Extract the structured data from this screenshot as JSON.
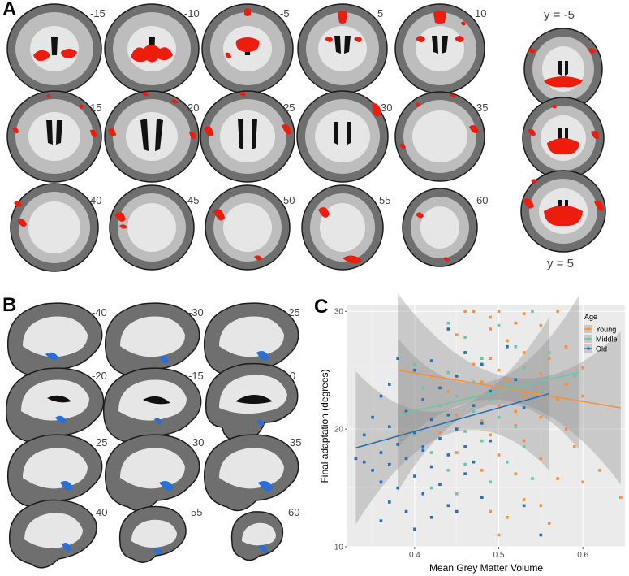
{
  "figure": {
    "panel_a": {
      "letter": "A",
      "axial_slices": [
        "-15",
        "-10",
        "-5",
        "5",
        "10",
        "15",
        "20",
        "25",
        "30",
        "35",
        "40",
        "45",
        "50",
        "55",
        "60"
      ],
      "coronal_top_label": "y = -5",
      "coronal_bottom_label": "y = 5"
    },
    "panel_b": {
      "letter": "B",
      "sagittal_slices": [
        "-40",
        "-30",
        "-25",
        "-20",
        "-15",
        "0",
        "25",
        "30",
        "35",
        "40",
        "55",
        "60"
      ]
    },
    "panel_c": {
      "letter": "C"
    }
  },
  "colors": {
    "activation_red": "#ee1c0d",
    "cluster_blue": "#2a6fd6",
    "young": "#f5913b",
    "middle": "#6cc5a6",
    "old": "#2b6fb0",
    "panel_bg": "#ebebeb"
  },
  "chart_data": {
    "type": "scatter",
    "xlabel": "Mean Grey Matter Volume",
    "ylabel": "Final adaptation (degrees)",
    "xlim": [
      0.32,
      0.65
    ],
    "ylim": [
      10,
      30.5
    ],
    "x_ticks": [
      "0.4",
      "0.5",
      "0.6"
    ],
    "x_tick_values": [
      0.4,
      0.5,
      0.6
    ],
    "y_ticks": [
      "10",
      "20",
      "30"
    ],
    "y_tick_values": [
      10,
      20,
      30
    ],
    "grid": true,
    "legend_title": "Age",
    "legend_position": "top-right",
    "series": [
      {
        "name": "Young",
        "color": "#f5913b",
        "fit": {
          "x": [
            0.38,
            0.645
          ],
          "y": [
            25.0,
            21.8
          ]
        },
        "points": [
          [
            0.46,
            30
          ],
          [
            0.47,
            30
          ],
          [
            0.49,
            29.5
          ],
          [
            0.5,
            30
          ],
          [
            0.53,
            29.8
          ],
          [
            0.57,
            30
          ],
          [
            0.49,
            28.5
          ],
          [
            0.52,
            29
          ],
          [
            0.55,
            28.8
          ],
          [
            0.45,
            28
          ],
          [
            0.58,
            27
          ],
          [
            0.51,
            27.5
          ],
          [
            0.46,
            26.5
          ],
          [
            0.49,
            26
          ],
          [
            0.53,
            26.5
          ],
          [
            0.56,
            26
          ],
          [
            0.6,
            25.2
          ],
          [
            0.47,
            25.5
          ],
          [
            0.5,
            25
          ],
          [
            0.55,
            24.7
          ],
          [
            0.42,
            24.5
          ],
          [
            0.48,
            24
          ],
          [
            0.51,
            24.2
          ],
          [
            0.58,
            23.8
          ],
          [
            0.44,
            23.2
          ],
          [
            0.53,
            22.8
          ],
          [
            0.57,
            22.5
          ],
          [
            0.6,
            22.8
          ],
          [
            0.41,
            22.5
          ],
          [
            0.5,
            22
          ],
          [
            0.52,
            21.5
          ],
          [
            0.55,
            21
          ],
          [
            0.45,
            21.2
          ],
          [
            0.48,
            20.7
          ],
          [
            0.52,
            20.3
          ],
          [
            0.58,
            20
          ],
          [
            0.43,
            19.7
          ],
          [
            0.49,
            19.5
          ],
          [
            0.53,
            19
          ],
          [
            0.59,
            18.5
          ],
          [
            0.45,
            18
          ],
          [
            0.5,
            17.8
          ],
          [
            0.55,
            17.5
          ],
          [
            0.52,
            16.2
          ],
          [
            0.57,
            15.8
          ],
          [
            0.48,
            16.5
          ],
          [
            0.62,
            16.5
          ],
          [
            0.6,
            15.5
          ],
          [
            0.53,
            14
          ],
          [
            0.55,
            13.5
          ],
          [
            0.49,
            13
          ],
          [
            0.645,
            14.2
          ],
          [
            0.56,
            12
          ],
          [
            0.51,
            12.5
          ],
          [
            0.5,
            11
          ]
        ]
      },
      {
        "name": "Middle",
        "color": "#6cc5a6",
        "fit": {
          "x": [
            0.38,
            0.595
          ],
          "y": [
            21.2,
            24.8
          ]
        },
        "points": [
          [
            0.54,
            30
          ],
          [
            0.44,
            29
          ],
          [
            0.5,
            28.8
          ],
          [
            0.46,
            27.8
          ],
          [
            0.52,
            27
          ],
          [
            0.56,
            26.5
          ],
          [
            0.48,
            26
          ],
          [
            0.4,
            25.5
          ],
          [
            0.53,
            25.2
          ],
          [
            0.44,
            24.8
          ],
          [
            0.59,
            24.5
          ],
          [
            0.47,
            24
          ],
          [
            0.51,
            23.8
          ],
          [
            0.41,
            23.5
          ],
          [
            0.55,
            23.2
          ],
          [
            0.45,
            22.8
          ],
          [
            0.49,
            22.5
          ],
          [
            0.43,
            22
          ],
          [
            0.53,
            21.8
          ],
          [
            0.47,
            21.5
          ],
          [
            0.5,
            21
          ],
          [
            0.44,
            20.5
          ],
          [
            0.52,
            20.2
          ],
          [
            0.46,
            19.8
          ],
          [
            0.4,
            19.5
          ],
          [
            0.48,
            19
          ],
          [
            0.53,
            18.5
          ],
          [
            0.42,
            18
          ],
          [
            0.46,
            17
          ],
          [
            0.51,
            17.2
          ],
          [
            0.44,
            16.5
          ],
          [
            0.49,
            15.5
          ],
          [
            0.54,
            15.8
          ],
          [
            0.45,
            14.5
          ],
          [
            0.42,
            15
          ]
        ]
      },
      {
        "name": "Old",
        "color": "#2b6fb0",
        "fit": {
          "x": [
            0.33,
            0.56
          ],
          "y": [
            18.4,
            23.0
          ]
        },
        "points": [
          [
            0.44,
            28.5
          ],
          [
            0.46,
            26.5
          ],
          [
            0.51,
            27
          ],
          [
            0.38,
            26
          ],
          [
            0.42,
            25.8
          ],
          [
            0.48,
            25.5
          ],
          [
            0.4,
            25
          ],
          [
            0.45,
            24.5
          ],
          [
            0.52,
            24.2
          ],
          [
            0.37,
            23.8
          ],
          [
            0.43,
            23.5
          ],
          [
            0.49,
            23.2
          ],
          [
            0.36,
            22.8
          ],
          [
            0.41,
            22.5
          ],
          [
            0.47,
            22
          ],
          [
            0.53,
            21.8
          ],
          [
            0.39,
            21.5
          ],
          [
            0.44,
            21.2
          ],
          [
            0.35,
            21
          ],
          [
            0.42,
            20.8
          ],
          [
            0.48,
            20.5
          ],
          [
            0.37,
            20.2
          ],
          [
            0.45,
            20
          ],
          [
            0.4,
            19.7
          ],
          [
            0.34,
            19.5
          ],
          [
            0.43,
            19.2
          ],
          [
            0.49,
            19
          ],
          [
            0.38,
            18.7
          ],
          [
            0.46,
            18.5
          ],
          [
            0.41,
            18.2
          ],
          [
            0.36,
            18
          ],
          [
            0.44,
            17.8
          ],
          [
            0.39,
            17.5
          ],
          [
            0.47,
            17.2
          ],
          [
            0.37,
            17
          ],
          [
            0.42,
            16.8
          ],
          [
            0.35,
            16.5
          ],
          [
            0.46,
            16.2
          ],
          [
            0.4,
            16
          ],
          [
            0.36,
            15.5
          ],
          [
            0.43,
            15.3
          ],
          [
            0.38,
            15
          ],
          [
            0.41,
            14.5
          ],
          [
            0.48,
            14.2
          ],
          [
            0.37,
            13.8
          ],
          [
            0.44,
            13.5
          ],
          [
            0.39,
            13
          ],
          [
            0.34,
            17.2
          ],
          [
            0.42,
            12.5
          ],
          [
            0.33,
            17.5
          ],
          [
            0.36,
            12.2
          ],
          [
            0.45,
            13
          ],
          [
            0.4,
            11.5
          ],
          [
            0.53,
            13.5
          ],
          [
            0.55,
            11
          ],
          [
            0.41,
            18.5
          ]
        ]
      }
    ]
  }
}
